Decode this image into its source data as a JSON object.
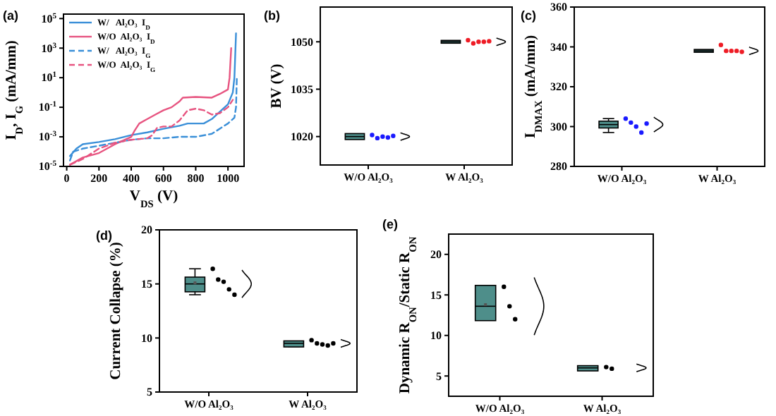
{
  "chart_data": [
    {
      "type": "line",
      "title": "(a)",
      "xlabel": "V$_{DS}$ (V)",
      "ylabel": "I$_{D}$, I$_{G}$ (mA/mm)",
      "log": "y",
      "legend": "top left",
      "xlim": [
        -20,
        1100
      ],
      "xticks": [
        0,
        200,
        400,
        600,
        800,
        1000
      ],
      "ylim": [
        1e-05,
        200000.0
      ],
      "yticks": [
        {
          "value": 1e-05,
          "label": "10$^{-5}$"
        },
        {
          "value": 0.001,
          "label": "10$^{-3}$"
        },
        {
          "value": 0.1,
          "label": "10$^{-1}$"
        },
        {
          "value": 10,
          "label": "10$^{1}$"
        },
        {
          "value": 1000,
          "label": "10$^{3}$"
        },
        {
          "value": 100000,
          "label": "10$^{5}$"
        }
      ],
      "series": [
        {
          "name": "W/   Al₂O₃  I$_{D}$",
          "color": "#3a8fd8",
          "line_style": "solid",
          "x": [
            20,
            60,
            100,
            200,
            300,
            400,
            500,
            600,
            700,
            750,
            850,
            900,
            950,
            1000,
            1030,
            1040,
            1050
          ],
          "values": [
            5e-05,
            0.00016,
            0.00032,
            0.00045,
            0.0007,
            0.0013,
            0.002,
            0.0035,
            0.0056,
            0.008,
            0.008,
            0.016,
            0.05,
            0.16,
            1,
            10,
            10000
          ]
        },
        {
          "name": "W/O  Al₂O₃  I$_{D}$",
          "color": "#e75480",
          "line_style": "solid",
          "x": [
            20,
            100,
            200,
            300,
            400,
            420,
            450,
            500,
            550,
            600,
            650,
            700,
            720,
            800,
            900,
            950,
            1000,
            1010,
            1020
          ],
          "values": [
            1.3e-05,
            4e-05,
            8e-05,
            0.00032,
            0.001,
            0.0025,
            0.008,
            0.016,
            0.032,
            0.063,
            0.1,
            0.25,
            0.45,
            0.5,
            0.45,
            0.8,
            1.6,
            10,
            1000
          ]
        },
        {
          "name": "W/   Al₂O₃  I$_{G}$",
          "color": "#3a8fd8",
          "line_style": "dashed",
          "x": [
            20,
            40,
            100,
            200,
            300,
            400,
            500,
            600,
            700,
            800,
            900,
            1000,
            1040,
            1050,
            1055
          ],
          "values": [
            2.5e-05,
            0.0001,
            0.00016,
            0.00025,
            0.0004,
            0.00063,
            0.0008,
            0.0008,
            0.001,
            0.001,
            0.0016,
            0.008,
            0.02,
            0.1,
            10
          ]
        },
        {
          "name": "W/O  Al₂O₃  I$_{G}$",
          "color": "#e75480",
          "line_style": "dashed",
          "x": [
            20,
            100,
            200,
            300,
            400,
            500,
            530,
            560,
            600,
            650,
            700,
            750,
            800,
            850,
            900,
            950,
            1000,
            1030
          ],
          "values": [
            1.3e-05,
            3.2e-05,
            0.00016,
            0.0004,
            0.00063,
            0.0008,
            0.0013,
            0.004,
            0.005,
            0.005,
            0.013,
            0.063,
            0.08,
            0.063,
            0.032,
            0.04,
            0.1,
            0.32
          ]
        }
      ]
    },
    {
      "type": "box",
      "title": "(b)",
      "ylabel": "BV (V)",
      "categories": [
        "W/O Al₂O₃",
        "W Al₂O₃"
      ],
      "ylim": [
        1011,
        1061
      ],
      "yticks": [
        1020,
        1035,
        1050
      ],
      "series": [
        {
          "type": "box",
          "color": "#4e8e8a",
          "boxes": [
            {
              "low": 1019.5,
              "q1": 1019.5,
              "median": 1020,
              "q3": 1020.5,
              "high": 1020.5
            },
            {
              "low": 1050,
              "q1": 1050,
              "median": 1050,
              "q3": 1050,
              "high": 1050
            }
          ]
        },
        {
          "type": "scatter",
          "color": "#1a1aff",
          "x": [
            "W/O Al₂O₃",
            "W/O Al₂O₃",
            "W/O Al₂O₃",
            "W/O Al₂O₃",
            "W/O Al₂O₃"
          ],
          "values": [
            1020.5,
            1019.5,
            1020,
            1019.7,
            1020.2
          ]
        },
        {
          "type": "scatter",
          "color": "#ee1c25",
          "x": [
            "W Al₂O₃",
            "W Al₂O₃",
            "W Al₂O₃",
            "W Al₂O₃",
            "W Al₂O₃"
          ],
          "values": [
            1050.5,
            1049.5,
            1050,
            1050,
            1050.2
          ]
        }
      ]
    },
    {
      "type": "box",
      "title": "(c)",
      "ylabel": "I$_{DMAX}$ (mA/mm)",
      "categories": [
        "W/O Al₂O₃",
        "W Al₂O₃"
      ],
      "ylim": [
        280,
        360
      ],
      "yticks": [
        280,
        300,
        320,
        340,
        360
      ],
      "series": [
        {
          "type": "box",
          "color": "#4e8e8a",
          "boxes": [
            {
              "low": 297,
              "q1": 300,
              "median": 301,
              "q3": 302,
              "high": 304
            },
            {
              "low": 338,
              "q1": 338,
              "median": 338,
              "q3": 338,
              "high": 338
            }
          ]
        },
        {
          "type": "scatter",
          "color": "#1a1aff",
          "x": [
            "W/O Al₂O₃",
            "W/O Al₂O₃",
            "W/O Al₂O₃",
            "W/O Al₂O₃",
            "W/O Al₂O₃"
          ],
          "values": [
            304,
            302,
            300,
            297,
            301.5
          ]
        },
        {
          "type": "scatter",
          "color": "#ee1c25",
          "x": [
            "W Al₂O₃",
            "W Al₂O₃",
            "W Al₂O₃",
            "W Al₂O₃",
            "W Al₂O₃"
          ],
          "values": [
            341,
            338,
            338,
            338,
            337.5
          ]
        }
      ]
    },
    {
      "type": "box",
      "title": "(d)",
      "ylabel": "Current Collapse (%)",
      "categories": [
        "W/O Al₂O₃",
        "W Al₂O₃"
      ],
      "ylim": [
        5,
        20
      ],
      "yticks": [
        5,
        10,
        15,
        20
      ],
      "series": [
        {
          "type": "box",
          "color": "#4e8e8a",
          "boxes": [
            {
              "low": 14,
              "q1": 14.4,
              "median": 15,
              "q3": 15.5,
              "high": 16.4,
              "mean": 15.1
            },
            {
              "low": 9.2,
              "q1": 9.3,
              "median": 9.5,
              "q3": 9.6,
              "high": 9.7
            }
          ]
        },
        {
          "type": "scatter",
          "color": "#000000",
          "x": [
            "W/O Al₂O₃",
            "W/O Al₂O₃",
            "W/O Al₂O₃",
            "W/O Al₂O₃",
            "W/O Al₂O₃",
            "W Al₂O₃",
            "W Al₂O₃",
            "W Al₂O₃",
            "W Al₂O₃",
            "W Al₂O₃"
          ],
          "values": [
            16.4,
            15.4,
            15.2,
            14.5,
            14,
            9.8,
            9.5,
            9.4,
            9.3,
            9.5
          ]
        }
      ]
    },
    {
      "type": "box",
      "title": "(e)",
      "ylabel": "Dynamic R$_{ON}$/Static R$_{ON}$",
      "categories": [
        "W/O Al₂O₃",
        "W Al₂O₃"
      ],
      "ylim": [
        2.5,
        22.5
      ],
      "yticks": [
        5,
        10,
        15,
        20
      ],
      "series": [
        {
          "type": "box",
          "color": "#4e8e8a",
          "boxes": [
            {
              "low": 12,
              "q1": 12,
              "median": 13.6,
              "q3": 16,
              "high": 16,
              "mean": 13.8
            },
            {
              "low": 5.8,
              "q1": 5.8,
              "median": 6,
              "q3": 6.1,
              "high": 6.1
            }
          ]
        },
        {
          "type": "scatter",
          "color": "#000000",
          "x": [
            "W/O Al₂O₃",
            "W/O Al₂O₃",
            "W/O Al₂O₃",
            "W Al₂O₃",
            "W Al₂O₃"
          ],
          "values": [
            16,
            13.6,
            12,
            6.1,
            5.9
          ]
        }
      ]
    }
  ]
}
